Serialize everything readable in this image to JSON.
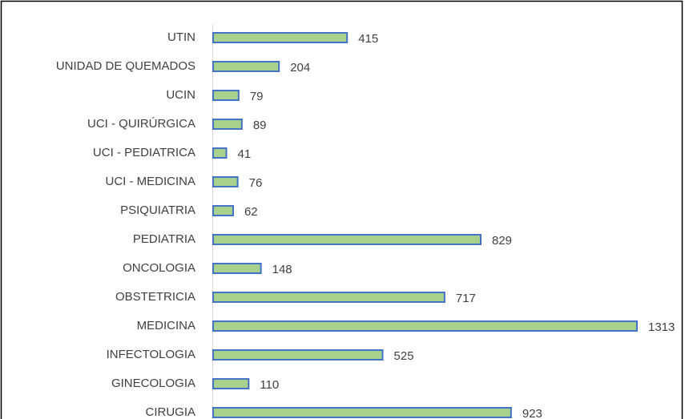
{
  "chart_data": {
    "type": "bar",
    "orientation": "horizontal",
    "categories": [
      "UTIN",
      "UNIDAD DE QUEMADOS",
      "UCIN",
      "UCI - QUIRÚRGICA",
      "UCI - PEDIATRICA",
      "UCI - MEDICINA",
      "PSIQUIATRIA",
      "PEDIATRIA",
      "ONCOLOGIA",
      "OBSTETRICIA",
      "MEDICINA",
      "INFECTOLOGIA",
      "GINECOLOGIA",
      "CIRUGIA"
    ],
    "values": [
      415,
      204,
      79,
      89,
      41,
      76,
      62,
      829,
      148,
      717,
      1313,
      525,
      110,
      923
    ],
    "color": "#a9d18e",
    "edge_color": "#4472c4"
  }
}
